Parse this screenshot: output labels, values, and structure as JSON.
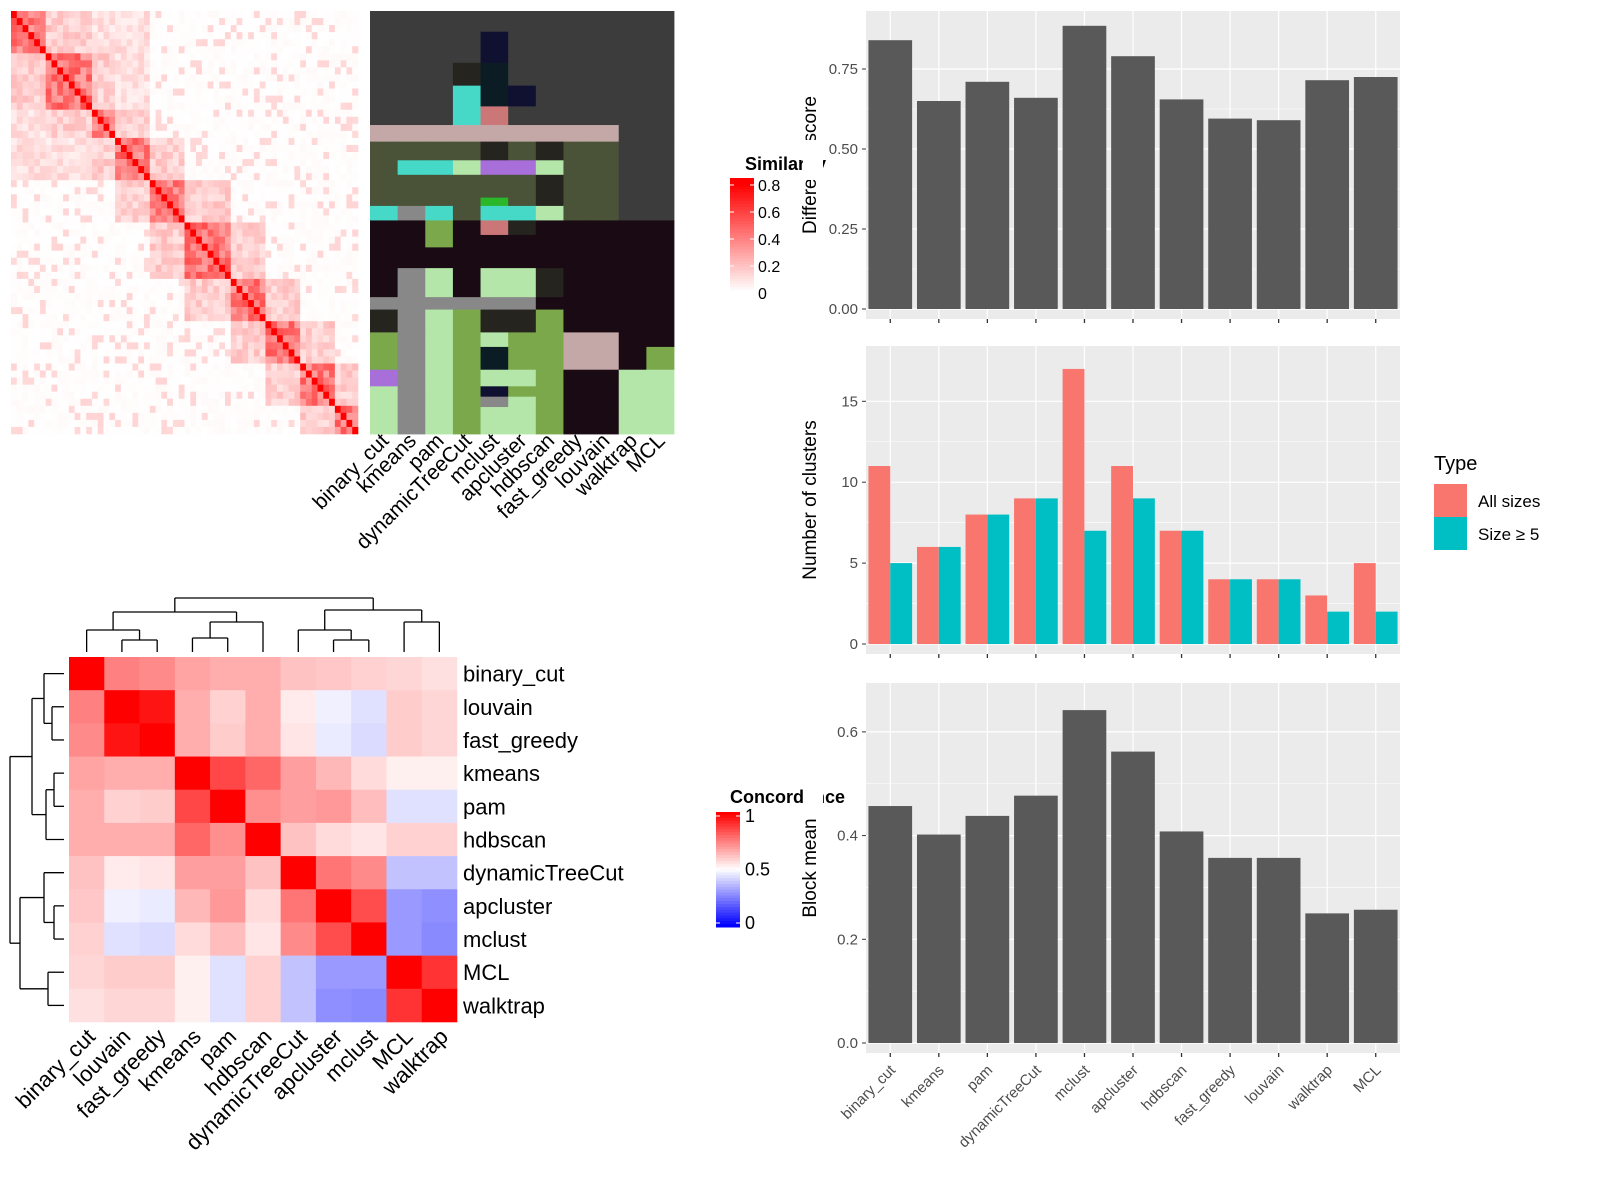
{
  "colors": {
    "panel_bg": "#ebebeb",
    "grid": "#ffffff",
    "bar_dark": "#595959",
    "all_sizes": "#f8766d",
    "size_ge5": "#00bfc4",
    "heat_high": "#ff0000",
    "heat_low": "#ffffff",
    "concord_low": "#0000ff"
  },
  "chart_data": [
    {
      "id": "similarity_heatmap",
      "type": "heatmap",
      "title": "",
      "description_text": "",
      "legend": {
        "title": "Similarity",
        "ticks": [
          "0.8",
          "0.6",
          "0.4",
          "0.2",
          "0"
        ],
        "placement": "right"
      },
      "annotation_columns": [
        "binary_cut",
        "kmeans",
        "pam",
        "dynamicTreeCut",
        "mclust",
        "apcluster",
        "hdbscan",
        "fast_greedy",
        "louvain",
        "walktrap",
        "MCL"
      ]
    },
    {
      "id": "concordance_heatmap",
      "type": "heatmap",
      "legend": {
        "title": "Concordance",
        "ticks": [
          "1",
          "0.5",
          "0"
        ],
        "placement": "right"
      },
      "rows": [
        "binary_cut",
        "louvain",
        "fast_greedy",
        "kmeans",
        "pam",
        "hdbscan",
        "dynamicTreeCut",
        "apcluster",
        "mclust",
        "MCL",
        "walktrap"
      ],
      "cols": [
        "binary_cut",
        "louvain",
        "fast_greedy",
        "kmeans",
        "pam",
        "hdbscan",
        "dynamicTreeCut",
        "apcluster",
        "mclust",
        "MCL",
        "walktrap"
      ],
      "values": [
        [
          1.0,
          0.75,
          0.73,
          0.68,
          0.66,
          0.66,
          0.62,
          0.61,
          0.59,
          0.58,
          0.56
        ],
        [
          0.75,
          1.0,
          0.96,
          0.66,
          0.59,
          0.66,
          0.54,
          0.47,
          0.44,
          0.6,
          0.58
        ],
        [
          0.73,
          0.96,
          1.0,
          0.66,
          0.6,
          0.66,
          0.55,
          0.46,
          0.43,
          0.6,
          0.58
        ],
        [
          0.68,
          0.66,
          0.66,
          1.0,
          0.86,
          0.8,
          0.69,
          0.64,
          0.57,
          0.53,
          0.53
        ],
        [
          0.66,
          0.59,
          0.6,
          0.86,
          1.0,
          0.72,
          0.69,
          0.7,
          0.63,
          0.44,
          0.44
        ],
        [
          0.66,
          0.66,
          0.66,
          0.8,
          0.72,
          1.0,
          0.62,
          0.57,
          0.55,
          0.59,
          0.59
        ],
        [
          0.62,
          0.54,
          0.55,
          0.69,
          0.69,
          0.62,
          1.0,
          0.77,
          0.73,
          0.38,
          0.38
        ],
        [
          0.61,
          0.47,
          0.46,
          0.64,
          0.7,
          0.57,
          0.77,
          1.0,
          0.85,
          0.3,
          0.28
        ],
        [
          0.59,
          0.44,
          0.43,
          0.57,
          0.63,
          0.55,
          0.73,
          0.85,
          1.0,
          0.3,
          0.27
        ],
        [
          0.58,
          0.6,
          0.6,
          0.53,
          0.44,
          0.59,
          0.38,
          0.3,
          0.3,
          1.0,
          0.9
        ],
        [
          0.56,
          0.58,
          0.58,
          0.53,
          0.44,
          0.59,
          0.38,
          0.28,
          0.27,
          0.9,
          1.0
        ]
      ]
    },
    {
      "id": "difference_score",
      "type": "bar",
      "categories": [
        "binary_cut",
        "kmeans",
        "pam",
        "dynamicTreeCut",
        "mclust",
        "apcluster",
        "hdbscan",
        "fast_greedy",
        "louvain",
        "walktrap",
        "MCL"
      ],
      "values": [
        0.84,
        0.65,
        0.71,
        0.66,
        0.885,
        0.79,
        0.655,
        0.595,
        0.59,
        0.715,
        0.725
      ],
      "ylabel": "Difference score",
      "ylim": [
        0,
        0.9
      ],
      "yticks": [
        "0.00",
        "0.25",
        "0.50",
        "0.75"
      ],
      "grid": true
    },
    {
      "id": "number_of_clusters",
      "type": "bar",
      "categories": [
        "binary_cut",
        "kmeans",
        "pam",
        "dynamicTreeCut",
        "mclust",
        "apcluster",
        "hdbscan",
        "fast_greedy",
        "louvain",
        "walktrap",
        "MCL"
      ],
      "series": [
        {
          "name": "All sizes",
          "values": [
            11,
            6,
            8,
            9,
            17,
            11,
            7,
            4,
            4,
            3,
            5
          ]
        },
        {
          "name": "Size ≥ 5",
          "values": [
            5,
            6,
            8,
            9,
            7,
            9,
            7,
            4,
            4,
            2,
            2
          ]
        }
      ],
      "ylabel": "Number of clusters",
      "ylim": [
        0,
        17.8
      ],
      "yticks": [
        "0",
        "5",
        "10",
        "15"
      ],
      "legend": {
        "title": "Type",
        "placement": "right"
      },
      "grid": true
    },
    {
      "id": "block_mean",
      "type": "bar",
      "categories": [
        "binary_cut",
        "kmeans",
        "pam",
        "dynamicTreeCut",
        "mclust",
        "apcluster",
        "hdbscan",
        "fast_greedy",
        "louvain",
        "walktrap",
        "MCL"
      ],
      "values": [
        0.457,
        0.402,
        0.438,
        0.477,
        0.642,
        0.562,
        0.408,
        0.357,
        0.357,
        0.25,
        0.257
      ],
      "ylabel": "Block mean",
      "ylim": [
        0,
        0.675
      ],
      "yticks": [
        "0.0",
        "0.2",
        "0.4",
        "0.6"
      ],
      "grid": true
    }
  ]
}
